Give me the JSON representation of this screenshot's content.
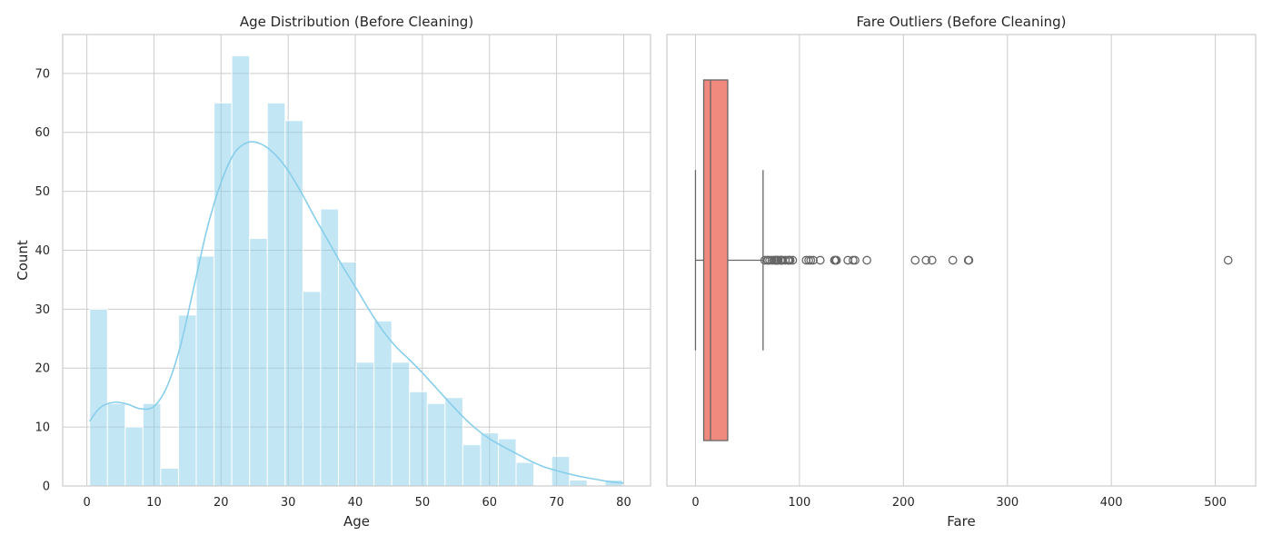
{
  "chart_data": [
    {
      "type": "bar",
      "title": "Age Distribution (Before Cleaning)",
      "xlabel": "Age",
      "ylabel": "Count",
      "xlim": [
        -3.6,
        84.0
      ],
      "ylim": [
        0,
        76.6
      ],
      "xticks": [
        0,
        10,
        20,
        30,
        40,
        50,
        60,
        70,
        80
      ],
      "yticks": [
        0,
        10,
        20,
        30,
        40,
        50,
        60,
        70
      ],
      "grid": true,
      "colors": {
        "bars": "#87ceeb",
        "kde": "#87ceeb"
      },
      "bin_edges": [
        0.42,
        3.07,
        5.72,
        8.36,
        11.01,
        13.66,
        16.31,
        18.96,
        21.6,
        24.25,
        26.9,
        29.55,
        32.2,
        34.84,
        37.49,
        40.14,
        42.79,
        45.44,
        48.08,
        50.73,
        53.38,
        56.03,
        58.68,
        61.32,
        63.97,
        66.62,
        69.27,
        71.92,
        74.56,
        77.21,
        79.86
      ],
      "counts": [
        30,
        14,
        10,
        14,
        3,
        29,
        39,
        65,
        73,
        42,
        65,
        62,
        33,
        47,
        38,
        21,
        28,
        21,
        16,
        14,
        15,
        7,
        9,
        8,
        4,
        0,
        5,
        1,
        0,
        1
      ],
      "kde_series": {
        "x": [
          0.42,
          2,
          4,
          6,
          8,
          10,
          12,
          14,
          16,
          18,
          20,
          22,
          24,
          26,
          28,
          30,
          32,
          34,
          36,
          38,
          40,
          42,
          44,
          46,
          48,
          50,
          52,
          54,
          56,
          58,
          60,
          62,
          64,
          66,
          68,
          70,
          72,
          74,
          76,
          78,
          80
        ],
        "y": [
          11,
          13.3,
          14.2,
          13.9,
          13.1,
          13.5,
          17,
          24,
          34,
          44,
          51.5,
          56.5,
          58.3,
          58,
          56.3,
          53.5,
          49.7,
          45.5,
          41.5,
          37.5,
          33.8,
          30,
          26.5,
          23.7,
          21.5,
          19.2,
          16.7,
          14.2,
          11.8,
          9.7,
          8,
          6.7,
          5.5,
          4.3,
          3.3,
          2.6,
          2,
          1.5,
          1.1,
          0.7,
          0.5
        ]
      }
    },
    {
      "type": "box",
      "title": "Fare Outliers (Before Cleaning)",
      "xlabel": "Fare",
      "xlim": [
        -27.5,
        538.8
      ],
      "xticks": [
        0,
        100,
        200,
        300,
        400,
        500
      ],
      "grid": true,
      "colors": {
        "box": "#f08a7e",
        "lines": "#666666"
      },
      "whisker_low": 0,
      "q1": 7.91,
      "median": 14.45,
      "q3": 31.0,
      "whisker_high": 65,
      "outliers": [
        66.6,
        69.3,
        69.55,
        71.28,
        73.5,
        75.25,
        76.73,
        77.29,
        77.96,
        78.27,
        79.2,
        79.65,
        81.86,
        82.17,
        83.16,
        83.48,
        86.5,
        89.1,
        90,
        91.08,
        93.5,
        106.43,
        108.9,
        110.88,
        113.28,
        120,
        133.65,
        134.5,
        135.63,
        146.52,
        151.55,
        153.46,
        164.87,
        211.34,
        221.78,
        227.53,
        247.52,
        262.38,
        263,
        512.33
      ]
    }
  ]
}
